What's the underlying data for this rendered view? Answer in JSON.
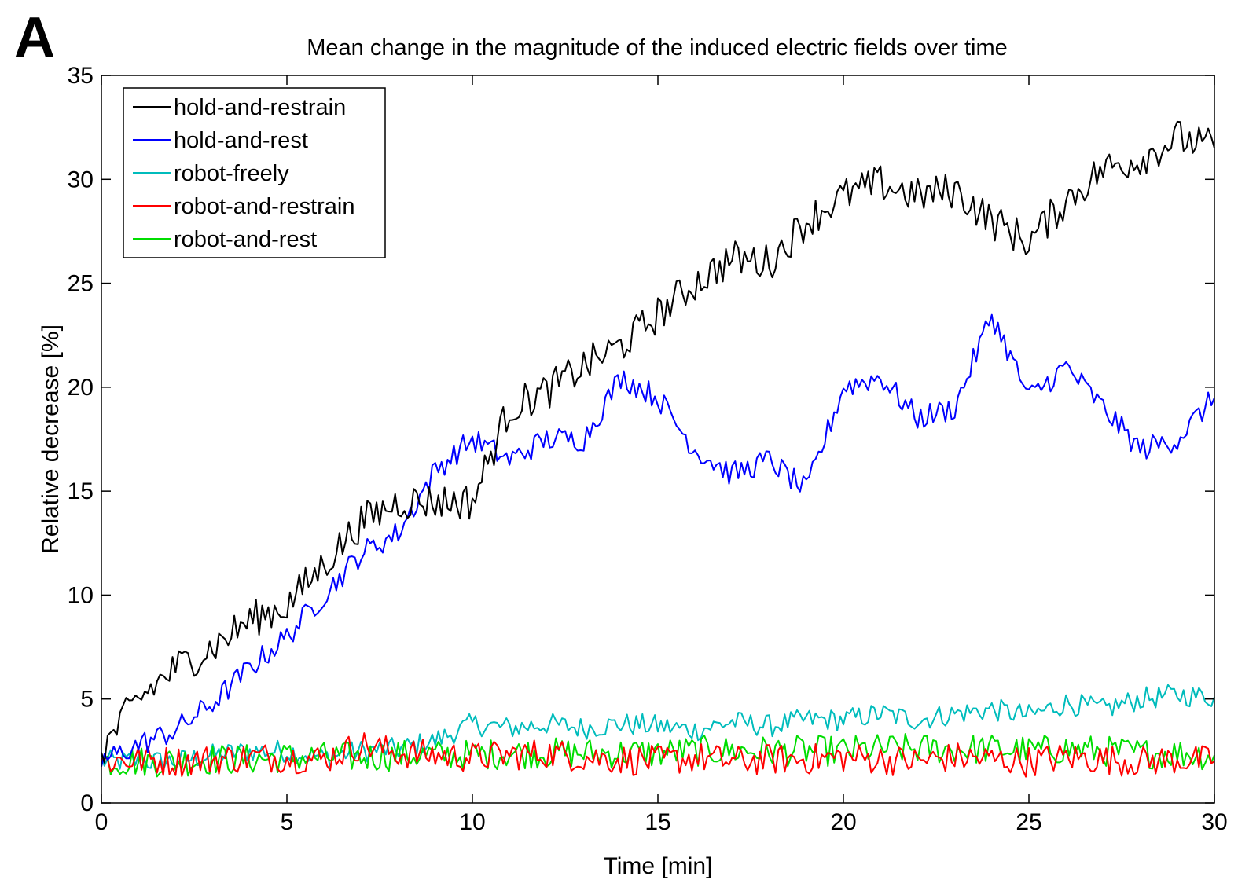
{
  "panel_label": "A",
  "chart_data": {
    "type": "line",
    "title": "Mean change in the magnitude of the induced electric fields over time",
    "xlabel": "Time [min]",
    "ylabel": "Relative decrease [%]",
    "xlim": [
      0,
      30
    ],
    "ylim": [
      0,
      35
    ],
    "x_ticks": [
      0,
      5,
      10,
      15,
      20,
      25,
      30
    ],
    "y_ticks": [
      0,
      5,
      10,
      15,
      20,
      25,
      30,
      35
    ],
    "grid": false,
    "legend_position": "top-left",
    "x": [
      0,
      1,
      2,
      3,
      4,
      5,
      6,
      7,
      8,
      9,
      10,
      11,
      12,
      13,
      14,
      15,
      16,
      17,
      18,
      19,
      20,
      21,
      22,
      23,
      24,
      25,
      26,
      27,
      28,
      29,
      30
    ],
    "series": [
      {
        "name": "hold-and-restrain",
        "color": "#000000",
        "values": [
          2.5,
          5.0,
          6.5,
          7.5,
          8.8,
          9.5,
          11.5,
          13.5,
          14.5,
          14.5,
          14.5,
          19.0,
          19.8,
          21.0,
          22.0,
          23.5,
          25.0,
          26.2,
          26.0,
          28.0,
          29.2,
          29.8,
          29.2,
          29.5,
          28.0,
          27.0,
          29.0,
          30.5,
          31.0,
          32.0,
          31.5
        ]
      },
      {
        "name": "hold-and-rest",
        "color": "#0000ff",
        "values": [
          2.0,
          2.8,
          3.5,
          4.8,
          6.5,
          8.0,
          10.0,
          12.0,
          13.0,
          16.0,
          17.5,
          16.5,
          17.5,
          17.5,
          20.5,
          19.5,
          17.0,
          15.8,
          16.5,
          15.0,
          20.0,
          20.5,
          18.5,
          19.0,
          23.5,
          19.5,
          21.0,
          19.0,
          17.0,
          17.5,
          19.5
        ]
      },
      {
        "name": "robot-freely",
        "color": "#00bcbc",
        "values": [
          2.0,
          2.0,
          2.0,
          2.3,
          2.5,
          2.5,
          2.2,
          2.5,
          2.6,
          3.0,
          3.8,
          3.6,
          3.8,
          3.6,
          3.8,
          3.7,
          3.5,
          3.9,
          3.7,
          4.0,
          4.0,
          4.3,
          4.0,
          4.3,
          4.5,
          4.2,
          4.8,
          4.5,
          5.0,
          5.2,
          5.1
        ]
      },
      {
        "name": "robot-and-restrain",
        "color": "#ff0000",
        "values": [
          2.0,
          2.1,
          2.0,
          2.1,
          2.2,
          2.2,
          2.1,
          2.8,
          2.4,
          2.3,
          2.2,
          2.3,
          2.4,
          2.2,
          2.1,
          2.0,
          2.2,
          2.0,
          2.1,
          2.1,
          2.2,
          2.1,
          2.0,
          2.2,
          2.1,
          2.0,
          2.2,
          2.1,
          2.0,
          2.1,
          2.0
        ]
      },
      {
        "name": "robot-and-rest",
        "color": "#00dd00",
        "values": [
          2.0,
          2.0,
          2.0,
          2.1,
          2.1,
          2.2,
          2.2,
          2.2,
          2.3,
          2.3,
          2.3,
          2.4,
          2.4,
          2.4,
          2.4,
          2.4,
          2.5,
          2.5,
          2.5,
          2.5,
          2.5,
          2.6,
          2.6,
          2.6,
          2.6,
          2.5,
          2.6,
          2.5,
          2.4,
          2.4,
          2.3
        ]
      }
    ]
  }
}
